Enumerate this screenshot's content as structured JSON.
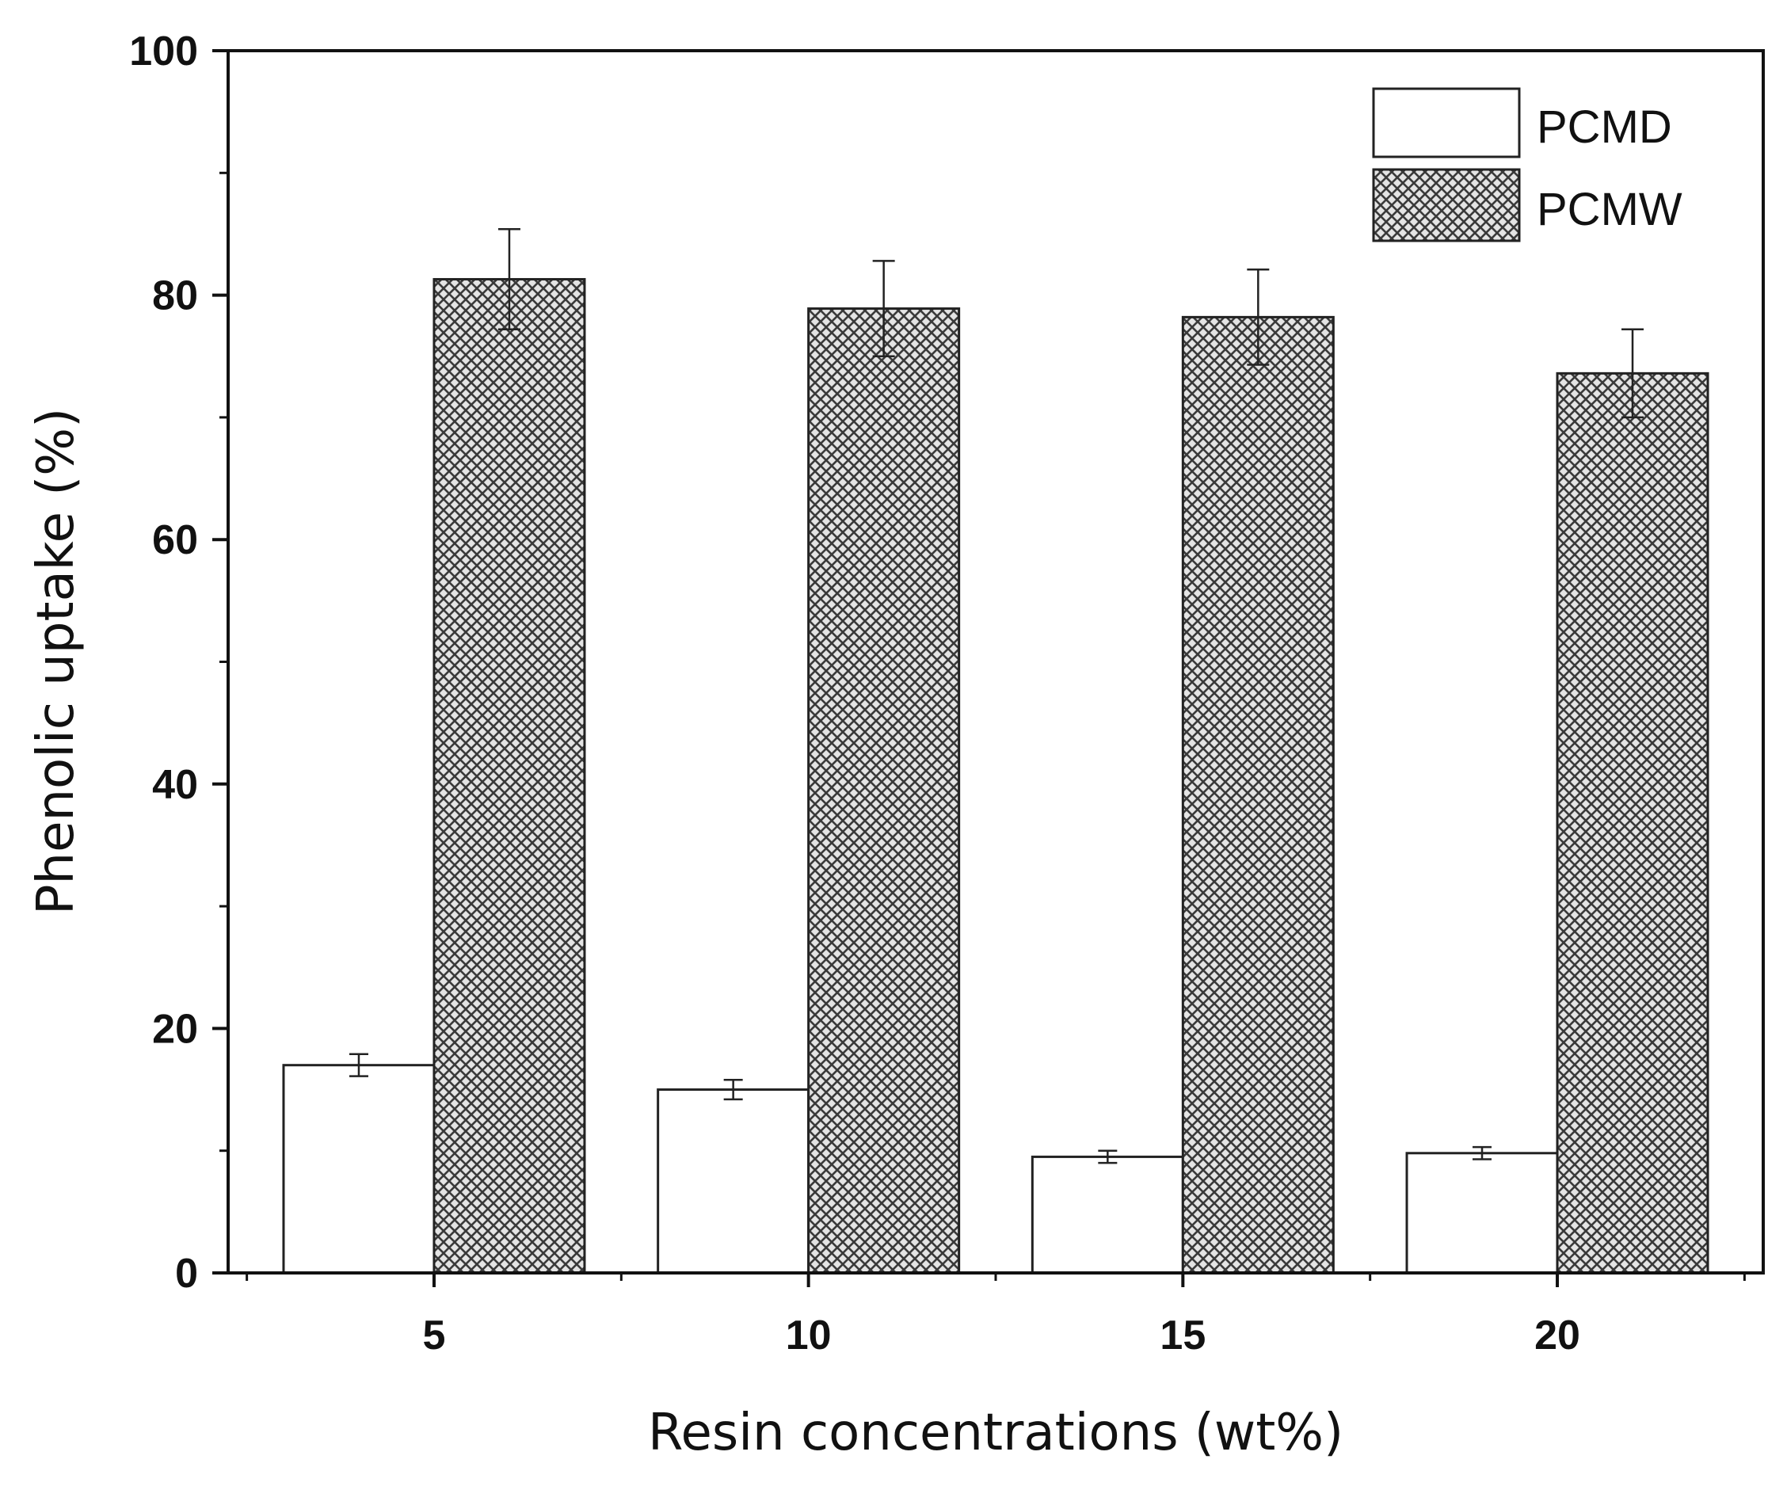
{
  "chart_data": {
    "type": "bar",
    "title": "",
    "xlabel": "Resin concentrations (wt%)",
    "ylabel": "Phenolic uptake (%)",
    "categories": [
      "5",
      "10",
      "15",
      "20"
    ],
    "ylim": [
      0,
      100
    ],
    "yticks": [
      "0",
      "20",
      "40",
      "60",
      "80",
      "100"
    ],
    "grid": false,
    "legend_position": "top-right",
    "series": [
      {
        "name": "PCMD",
        "values": [
          17,
          15,
          9.5,
          9.8
        ],
        "errors": [
          0.9,
          0.8,
          0.5,
          0.5
        ],
        "fill": "#ffffff",
        "pattern": "none"
      },
      {
        "name": "PCMW",
        "values": [
          81.3,
          78.9,
          78.2,
          73.6
        ],
        "errors": [
          4.1,
          3.9,
          3.9,
          3.6
        ],
        "fill": "#d8d8d8",
        "pattern": "crosshatch"
      }
    ]
  },
  "colors": {
    "axis": "#111111",
    "bar_edge": "#222222",
    "hatch": "#3a3a3a"
  }
}
